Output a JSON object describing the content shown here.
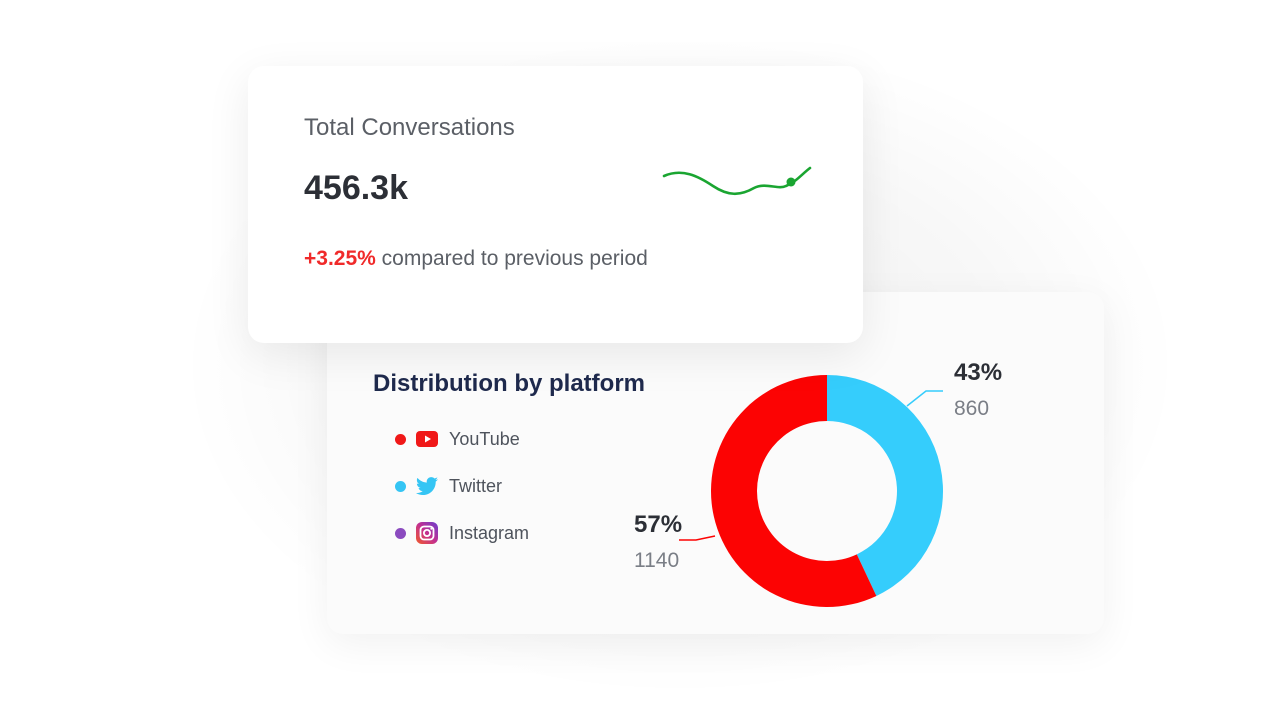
{
  "conversations": {
    "title": "Total Conversations",
    "value": "456.3k",
    "change": "+3.25%",
    "comparison": "compared to previous period",
    "sparkline_color": "#1aa531"
  },
  "distribution": {
    "title": "Distribution by platform",
    "platforms": [
      {
        "label": "YouTube",
        "icon": "youtube-icon",
        "color": "#f01818"
      },
      {
        "label": "Twitter",
        "icon": "twitter-icon",
        "color": "#35c5f4"
      },
      {
        "label": "Instagram",
        "icon": "instagram-icon",
        "color": "#8b4bbf"
      }
    ],
    "slices": [
      {
        "name": "Twitter",
        "percent": "43%",
        "count": "860",
        "color": "#35cdfc"
      },
      {
        "name": "YouTube",
        "percent": "57%",
        "count": "1140",
        "color": "#fc0303"
      }
    ]
  }
}
